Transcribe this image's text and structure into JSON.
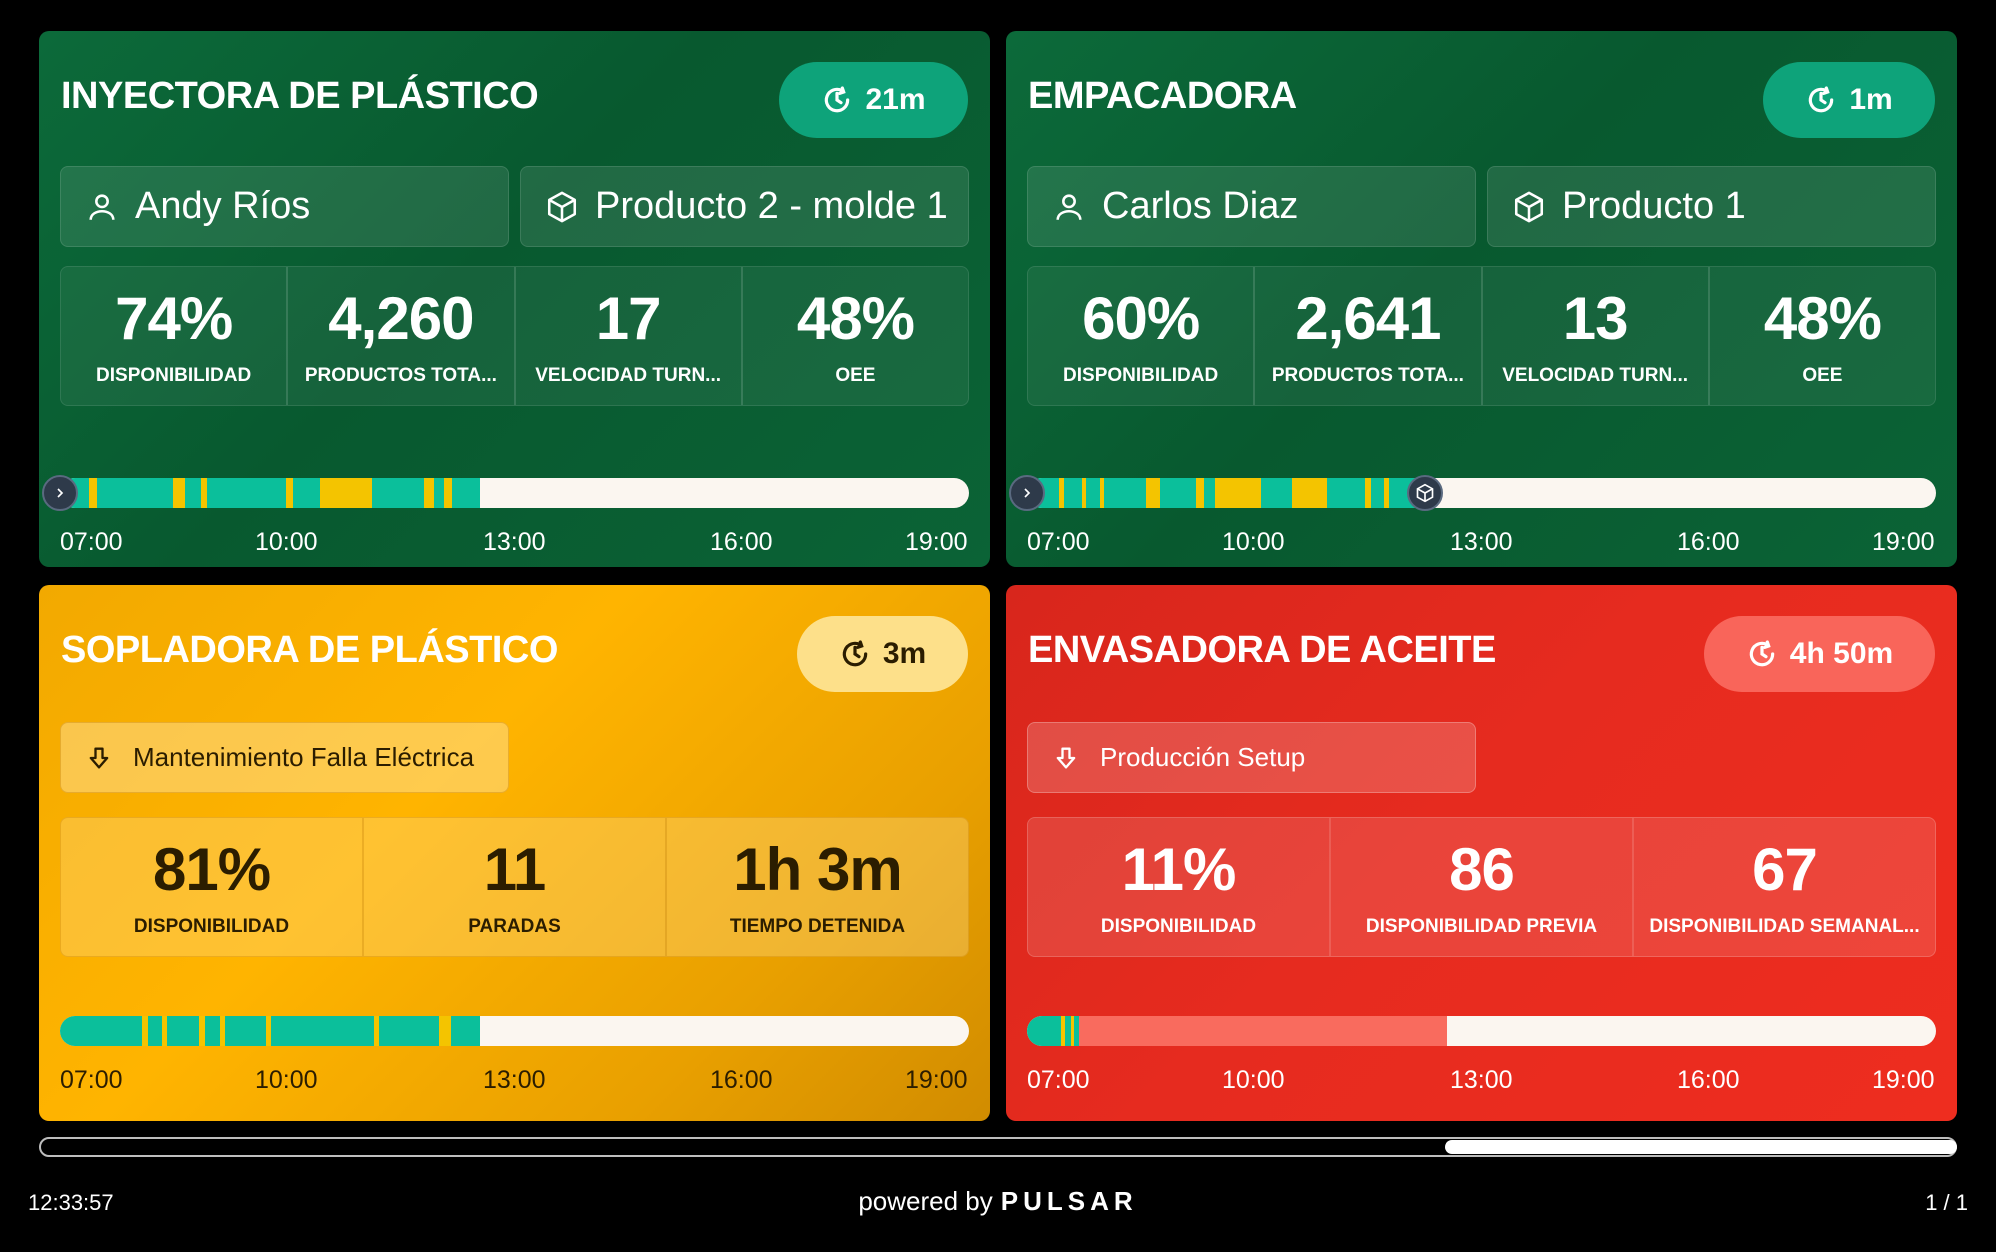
{
  "colors": {
    "uptime": "#0bbf9b",
    "downtime": "#f4c400",
    "setup": "#f96b5e",
    "empty": "#fbf6f0"
  },
  "cards": [
    {
      "title": "INYECTORA DE PLÁSTICO",
      "timer": "21m",
      "operator": "Andy Ríos",
      "product": "Producto 2 - molde 1",
      "metrics": [
        {
          "value": "74%",
          "label": "DISPONIBILIDAD"
        },
        {
          "value": "4,260",
          "label": "PRODUCTOS TOTA..."
        },
        {
          "value": "17",
          "label": "VELOCIDAD TURN..."
        },
        {
          "value": "48%",
          "label": "OEE"
        }
      ],
      "axis": [
        "07:00",
        "10:00",
        "13:00",
        "16:00",
        "19:00"
      ]
    },
    {
      "title": "EMPACADORA",
      "timer": "1m",
      "operator": "Carlos Diaz",
      "product": "Producto 1",
      "metrics": [
        {
          "value": "60%",
          "label": "DISPONIBILIDAD"
        },
        {
          "value": "2,641",
          "label": "PRODUCTOS TOTA..."
        },
        {
          "value": "13",
          "label": "VELOCIDAD TURN..."
        },
        {
          "value": "48%",
          "label": "OEE"
        }
      ],
      "axis": [
        "07:00",
        "10:00",
        "13:00",
        "16:00",
        "19:00"
      ]
    },
    {
      "title": "SOPLADORA DE PLÁSTICO",
      "timer": "3m",
      "status": "Mantenimiento Falla Eléctrica",
      "metrics": [
        {
          "value": "81%",
          "label": "DISPONIBILIDAD"
        },
        {
          "value": "11",
          "label": "PARADAS"
        },
        {
          "value": "1h 3m",
          "label": "TIEMPO DETENIDA"
        }
      ],
      "axis": [
        "07:00",
        "10:00",
        "13:00",
        "16:00",
        "19:00"
      ]
    },
    {
      "title": "ENVASADORA DE ACEITE",
      "timer": "4h 50m",
      "status": "Producción Setup",
      "metrics": [
        {
          "value": "11%",
          "label": "DISPONIBILIDAD"
        },
        {
          "value": "86",
          "label": "DISPONIBILIDAD PREVIA"
        },
        {
          "value": "67",
          "label": "DISPONIBILIDAD SEMANAL..."
        }
      ],
      "axis": [
        "07:00",
        "10:00",
        "13:00",
        "16:00",
        "19:00"
      ]
    }
  ],
  "footer": {
    "clock": "12:33:57",
    "powered_prefix": "powered by",
    "brand": "PULSAR",
    "pager": "1 / 1"
  }
}
